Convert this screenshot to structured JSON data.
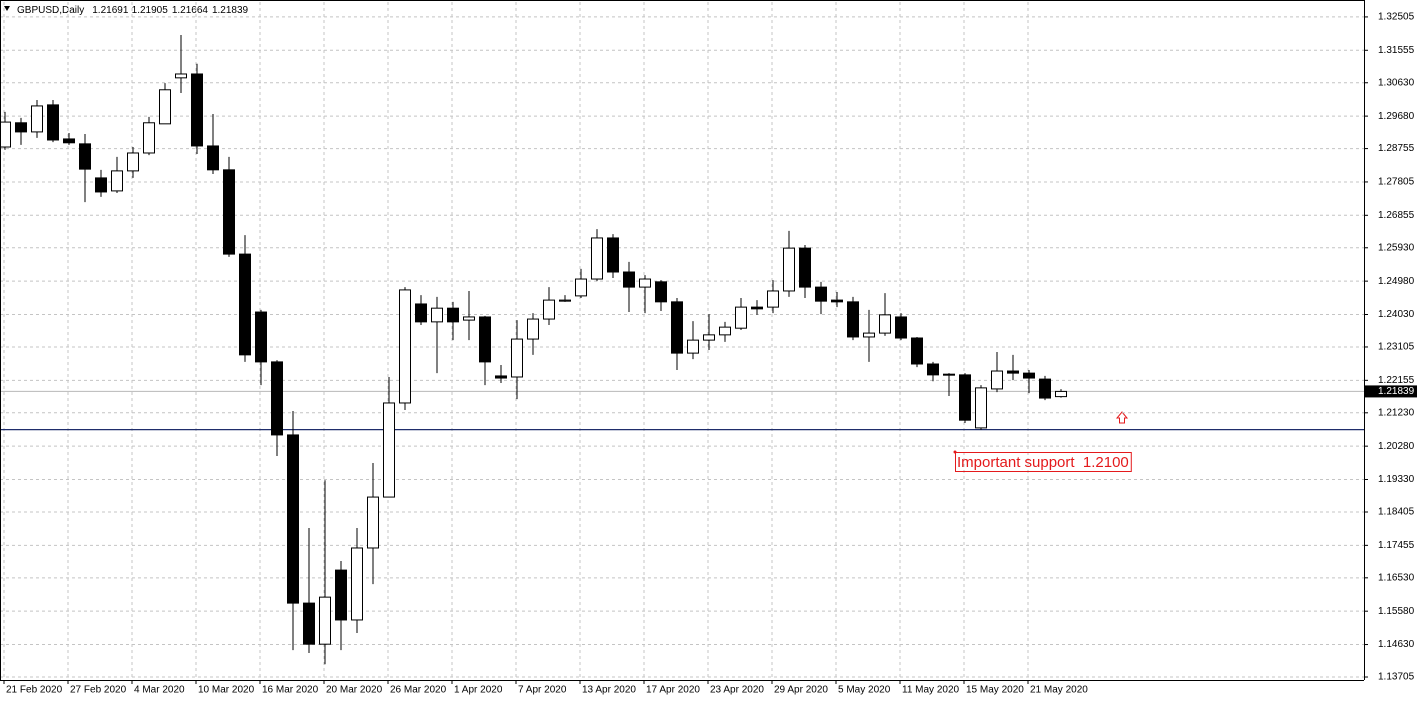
{
  "chart_data": {
    "type": "candlestick",
    "title": "GBPUSD,Daily",
    "categories": [
      "21 Feb 2020",
      null,
      null,
      null,
      "27 Feb 2020",
      null,
      null,
      null,
      "4 Mar 2020",
      null,
      null,
      null,
      "10 Mar 2020",
      null,
      null,
      null,
      "16 Mar 2020",
      null,
      null,
      null,
      "20 Mar 2020",
      null,
      null,
      null,
      "26 Mar 2020",
      null,
      null,
      null,
      "1 Apr 2020",
      null,
      null,
      null,
      "7 Apr 2020",
      null,
      null,
      null,
      "13 Apr 2020",
      null,
      null,
      null,
      "17 Apr 2020",
      null,
      null,
      null,
      "23 Apr 2020",
      null,
      null,
      null,
      "29 Apr 2020",
      null,
      null,
      null,
      "5 May 2020",
      null,
      null,
      null,
      "11 May 2020",
      null,
      null,
      null,
      "15 May 2020",
      null,
      null,
      null,
      "21 May 2020",
      null,
      null
    ],
    "open": [
      1.288,
      1.2949,
      1.2923,
      1.3,
      1.2903,
      1.2889,
      1.2792,
      1.2755,
      1.2812,
      1.2863,
      1.2946,
      1.3077,
      1.3088,
      1.2883,
      1.2815,
      1.2575,
      1.241,
      1.2268,
      1.206,
      1.1581,
      1.1464,
      1.1675,
      1.1533,
      1.1738,
      1.1883,
      1.2151,
      1.2433,
      1.2382,
      1.2421,
      1.2387,
      1.2396,
      1.2228,
      1.2225,
      1.2333,
      1.239,
      1.2441,
      1.2456,
      1.2504,
      1.2621,
      1.2524,
      1.2481,
      1.2496,
      1.2439,
      1.2293,
      1.233,
      1.2345,
      1.2364,
      1.2424,
      1.2424,
      1.247,
      1.2592,
      1.2481,
      1.2444,
      1.2439,
      1.2339,
      1.235,
      1.2396,
      1.2336,
      1.2262,
      1.2233,
      1.2231,
      1.208,
      1.2191,
      1.2242,
      1.2236,
      1.2219,
      1.21691
    ],
    "high": [
      1.298,
      1.2963,
      1.3014,
      1.3014,
      1.292,
      1.2917,
      1.2815,
      1.2852,
      1.288,
      1.2966,
      1.3062,
      1.3199,
      1.3117,
      1.2974,
      1.2852,
      1.2629,
      1.2416,
      1.2273,
      1.2128,
      1.1795,
      1.1931,
      1.1701,
      1.1795,
      1.198,
      1.2225,
      1.2481,
      1.2458,
      1.2453,
      1.2439,
      1.247,
      1.2399,
      1.2259,
      1.2387,
      1.2407,
      1.2481,
      1.2458,
      1.2533,
      1.2646,
      1.2632,
      1.2553,
      1.2515,
      1.2501,
      1.245,
      1.2384,
      1.2404,
      1.2382,
      1.245,
      1.2444,
      1.2501,
      1.2641,
      1.2601,
      1.2496,
      1.2467,
      1.2453,
      1.2416,
      1.2464,
      1.2407,
      1.2339,
      1.2268,
      1.2236,
      1.2236,
      1.2202,
      1.2296,
      1.2288,
      1.2245,
      1.2228,
      1.21905
    ],
    "low": [
      1.2872,
      1.2886,
      1.2906,
      1.2894,
      1.2886,
      1.2723,
      1.2738,
      1.2749,
      1.2792,
      1.2857,
      1.2946,
      1.3034,
      1.286,
      1.2803,
      1.2567,
      1.2268,
      1.2202,
      1.2,
      1.1447,
      1.1439,
      1.1407,
      1.1447,
      1.1496,
      1.1635,
      1.1883,
      1.2131,
      1.2373,
      1.2236,
      1.233,
      1.233,
      1.2202,
      1.2208,
      1.2162,
      1.2288,
      1.2373,
      1.2439,
      1.245,
      1.2498,
      1.2507,
      1.241,
      1.2407,
      1.2413,
      1.2245,
      1.2276,
      1.2302,
      1.2325,
      1.2359,
      1.2402,
      1.2407,
      1.2453,
      1.245,
      1.2404,
      1.2424,
      1.233,
      1.2268,
      1.2342,
      1.233,
      1.2253,
      1.2213,
      1.2171,
      1.2094,
      1.2074,
      1.2182,
      1.2216,
      1.2179,
      1.2159,
      1.21664
    ],
    "close": [
      1.2951,
      1.2923,
      1.2997,
      1.29,
      1.2892,
      1.2817,
      1.2752,
      1.2812,
      1.2863,
      1.2949,
      1.3043,
      1.3088,
      1.2883,
      1.2815,
      1.2575,
      1.2288,
      1.2268,
      1.206,
      1.1581,
      1.1464,
      1.1598,
      1.1533,
      1.1738,
      1.1883,
      1.2151,
      1.2473,
      1.2382,
      1.2421,
      1.2382,
      1.2396,
      1.2268,
      1.2222,
      1.2333,
      1.239,
      1.2444,
      1.2444,
      1.2504,
      1.2621,
      1.2524,
      1.2481,
      1.2504,
      1.2439,
      1.2293,
      1.233,
      1.2345,
      1.2367,
      1.2424,
      1.2419,
      1.247,
      1.2592,
      1.2481,
      1.2441,
      1.2439,
      1.2339,
      1.235,
      1.2402,
      1.2336,
      1.2262,
      1.2231,
      1.2231,
      1.2102,
      1.2194,
      1.2242,
      1.2236,
      1.2222,
      1.2165,
      1.21839
    ],
    "up_color": "#ffffff",
    "down_color": "#000000",
    "wick_color": "#000000",
    "ylim": [
      1.1362,
      1.3293
    ],
    "yticks": [
      1.32505,
      1.31555,
      {
        "value": 1.3063,
        "label": "1.30630"
      },
      {
        "value": 1.2968,
        "label": "1.29680"
      },
      1.28755,
      1.27805,
      1.26855,
      {
        "value": 1.2593,
        "label": "1.25930"
      },
      {
        "value": 1.2498,
        "label": "1.24980"
      },
      {
        "value": 1.2403,
        "label": "1.24030"
      },
      1.23105,
      1.22155,
      {
        "value": 1.2123,
        "label": "1.21230"
      },
      {
        "value": 1.2028,
        "label": "1.20280"
      },
      {
        "value": 1.1933,
        "label": "1.19330"
      },
      1.18405,
      1.17455,
      {
        "value": 1.1653,
        "label": "1.16530"
      },
      {
        "value": 1.1558,
        "label": "1.15580"
      },
      {
        "value": 1.1463,
        "label": "1.14630"
      },
      1.13705
    ],
    "grid": true,
    "support_level": 1.2075,
    "support_color": "#1f2d6b",
    "annotation": {
      "text": "Important support  1.2100",
      "color": "#e41a1c"
    }
  }
}
